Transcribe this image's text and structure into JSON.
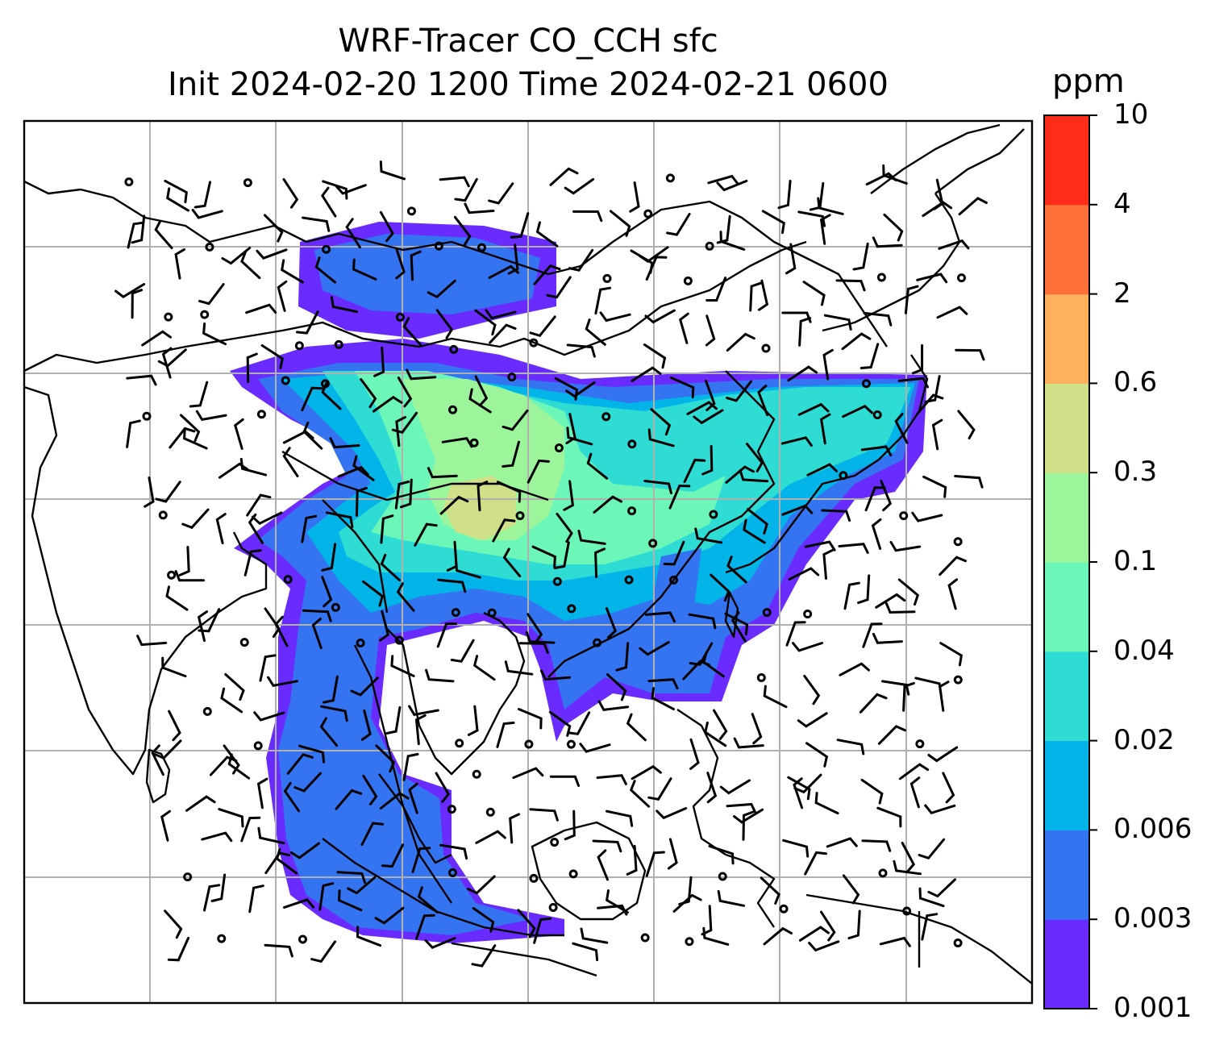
{
  "title": {
    "line1": "WRF-Tracer CO_CCH sfc",
    "line2": "Init 2024-02-20 1200 Time 2024-02-21 0600"
  },
  "colorbar": {
    "unit": "ppm",
    "levels": [
      "0.001",
      "0.003",
      "0.006",
      "0.02",
      "0.04",
      "0.1",
      "0.3",
      "0.6",
      "2",
      "4",
      "10"
    ],
    "colors": [
      "#6a2bff",
      "#3574f0",
      "#03b4e8",
      "#2fdcd4",
      "#6cf7b8",
      "#9cf59a",
      "#cfe088",
      "#ffb05c",
      "#ff7038",
      "#ff2c1a"
    ]
  },
  "map": {
    "gridline_color": "#b0b0b0",
    "coastline_color": "#000000"
  }
}
